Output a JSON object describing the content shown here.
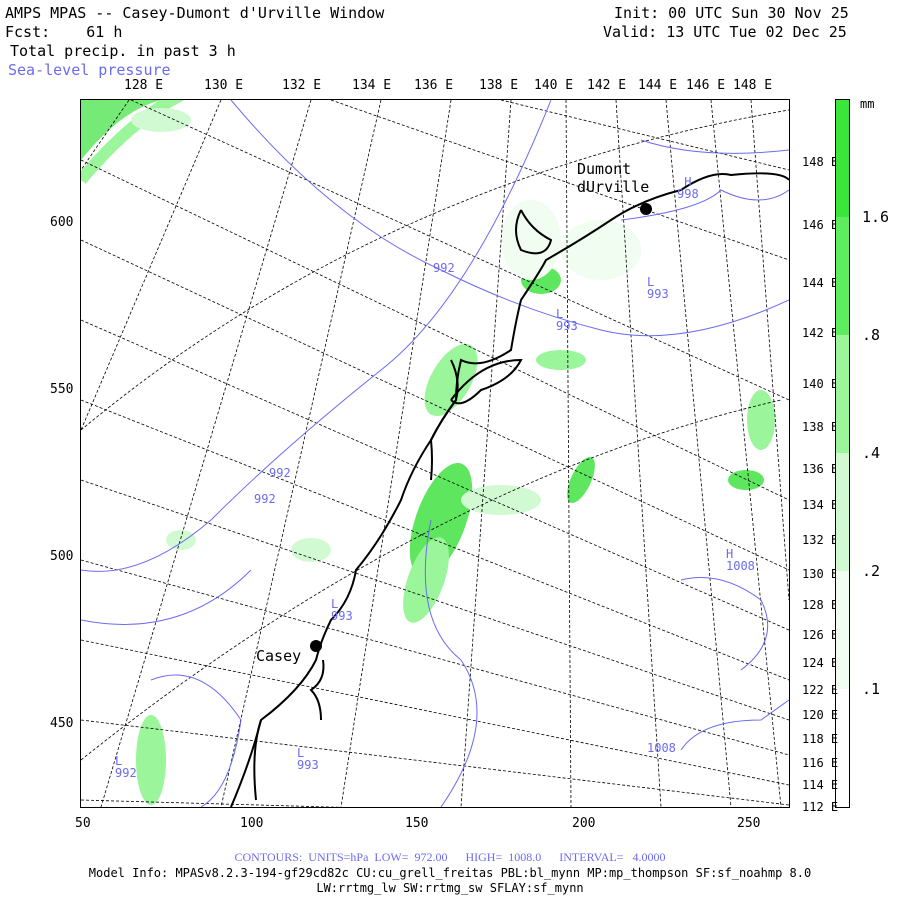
{
  "header": {
    "title": "AMPS MPAS -- Casey-Dumont d'Urville Window",
    "fcst": "Fcst:    61 h",
    "field": "Total precip. in past 3 h",
    "overlay": "Sea-level pressure",
    "init": "Init: 00 UTC Sun 30 Nov 25",
    "valid": "Valid: 13 UTC Tue 02 Dec 25"
  },
  "top_ticks": [
    "128 E",
    "130 E",
    "132 E",
    "134 E",
    "136 E",
    "138 E",
    "140 E",
    "142 E",
    "144 E",
    "146 E",
    "148 E"
  ],
  "right_ticks": [
    "148 E",
    "146 E",
    "144 E",
    "142 E",
    "140 E",
    "138 E",
    "136 E",
    "134 E",
    "132 E",
    "130 E",
    "128 E",
    "126 E",
    "124 E",
    "122 E",
    "120 E",
    "118 E",
    "116 E",
    "114 E",
    "112 E"
  ],
  "left_ticks": [
    "600",
    "550",
    "500",
    "450"
  ],
  "bottom_ticks": [
    "50",
    "100",
    "150",
    "200",
    "250"
  ],
  "stations": [
    "Dumont\ndUrville",
    "Casey"
  ],
  "pressure_labels": [
    {
      "sym": "H",
      "val": "998"
    },
    {
      "sym": "L",
      "val": "993"
    },
    {
      "sym": "L",
      "val": "993"
    },
    {
      "sym": "",
      "val": "992"
    },
    {
      "sym": "",
      "val": "992"
    },
    {
      "sym": "",
      "val": "992"
    },
    {
      "sym": "L",
      "val": "993"
    },
    {
      "sym": "H",
      "val": "1008"
    },
    {
      "sym": "L",
      "val": "993"
    },
    {
      "sym": "L",
      "val": "992"
    },
    {
      "sym": "",
      "val": "1008"
    }
  ],
  "colorbar": {
    "unit": "mm",
    "labels": [
      "1.6",
      ".8",
      ".4",
      ".2",
      ".1"
    ],
    "colors": [
      "#3ae63a",
      "#5eed5e",
      "#9bf59b",
      "#d2fad2",
      "#f0fdf0"
    ]
  },
  "footer": {
    "contours": "CONTOURS:  UNITS=hPa  LOW=  972.00      HIGH=  1008.0      INTERVAL=   4.0000",
    "model_info": "Model Info: MPASv8.2.3-194-gf29cd82c CU:cu_grell_freitas PBL:bl_mynn MP:mp_thompson SF:sf_noahmp 8.0",
    "physics": "LW:rrtmg_lw SW:rrtmg_sw SFLAY:sf_mynn"
  },
  "colors": {
    "contour": "#6b6bf0",
    "precip": "#5ee65e",
    "coast": "#000000"
  }
}
